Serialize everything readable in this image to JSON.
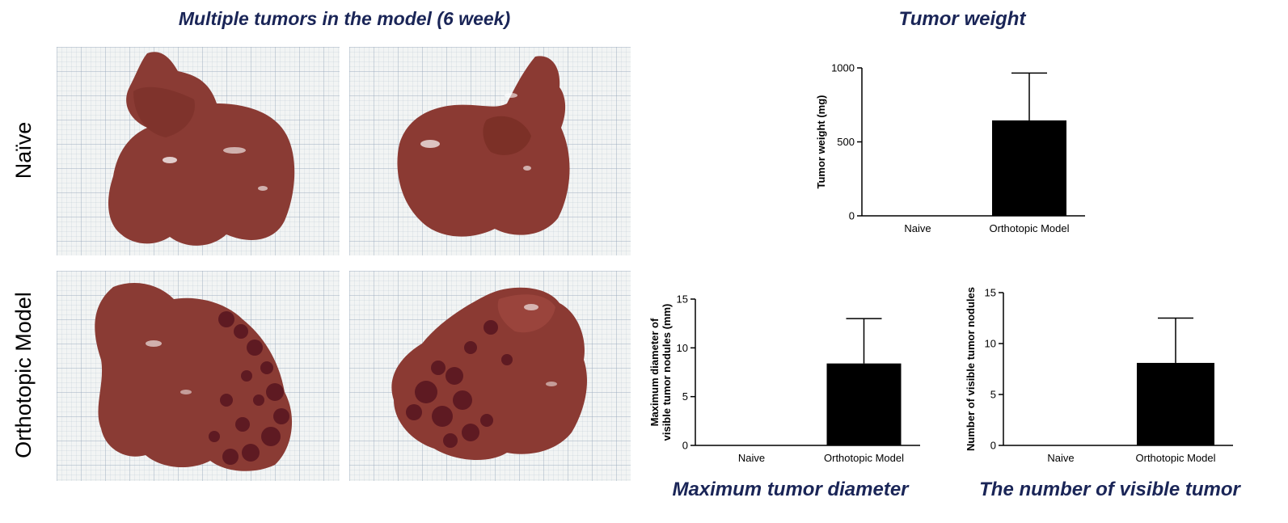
{
  "left_panel": {
    "title": "Multiple tumors in the model (6 week)",
    "row_labels": [
      "Naïve",
      "Orthotopic Model"
    ]
  },
  "chart_titles": {
    "weight": "Tumor weight",
    "diameter": "Maximum tumor diameter",
    "nodules": "The number of visible tumor"
  },
  "colors": {
    "title": "#1a2557",
    "bar": "#000000",
    "liver": "#8a3b34",
    "nodule": "#5e1a22"
  },
  "chart_data": [
    {
      "id": "weight",
      "type": "bar",
      "title": "Tumor weight",
      "categories": [
        "Naive",
        "Orthotopic Model"
      ],
      "values": [
        0,
        645
      ],
      "error": [
        0,
        320
      ],
      "ylabel": "Tumor weight (mg)",
      "ylim": [
        0,
        1000
      ],
      "yticks": [
        0,
        500,
        1000
      ],
      "grid": false
    },
    {
      "id": "diameter",
      "type": "bar",
      "title": "Maximum tumor diameter",
      "categories": [
        "Naive",
        "Orthotopic Model"
      ],
      "values": [
        0,
        8.4
      ],
      "error": [
        0,
        4.6
      ],
      "ylabel": "Maximum diameter of visible tumor nodules (mm)",
      "ylim": [
        0,
        15
      ],
      "yticks": [
        0,
        5,
        10,
        15
      ],
      "grid": false
    },
    {
      "id": "nodules",
      "type": "bar",
      "title": "The number of visible tumor",
      "categories": [
        "Naive",
        "Orthotopic Model"
      ],
      "values": [
        0,
        8.1
      ],
      "error": [
        0,
        4.4
      ],
      "ylabel": "Number of visible tumor nodules",
      "ylim": [
        0,
        15
      ],
      "yticks": [
        0,
        5,
        10,
        15
      ],
      "grid": false
    }
  ]
}
